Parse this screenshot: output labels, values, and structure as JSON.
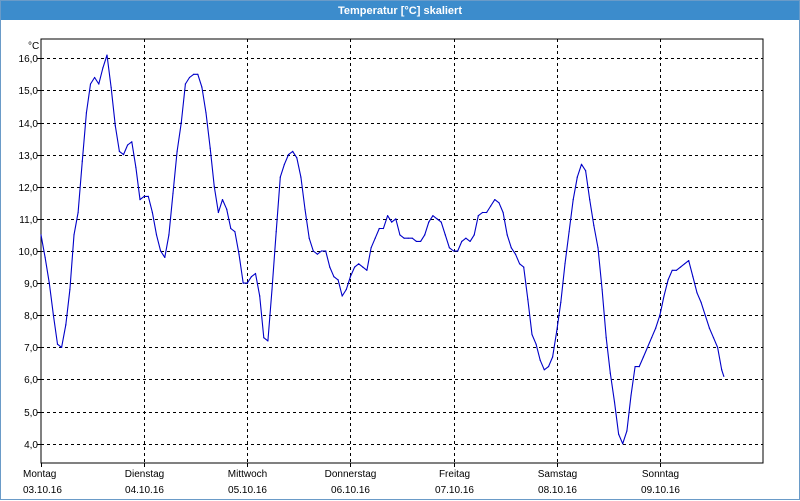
{
  "window": {
    "title": "Temperatur [°C] skaliert"
  },
  "colors": {
    "line": "#0000c8",
    "grid": "#000000",
    "titlebar": "#3c8ccc"
  },
  "chart_data": {
    "type": "line",
    "title": "Temperatur [°C] skaliert",
    "ylabel": "°C",
    "xlabel": "",
    "ylim": [
      3.4,
      16.6
    ],
    "xlim": [
      0,
      7
    ],
    "grid": true,
    "y_ticks": [
      "16,0",
      "15,0",
      "14,0",
      "13,0",
      "12,0",
      "11,0",
      "10,0",
      "9,0",
      "8,0",
      "7,0",
      "6,0",
      "5,0",
      "4,0"
    ],
    "y_tick_values": [
      16,
      15,
      14,
      13,
      12,
      11,
      10,
      9,
      8,
      7,
      6,
      5,
      4
    ],
    "x_ticks": [
      {
        "day": "Montag",
        "date": "03.10.16",
        "x": 0
      },
      {
        "day": "Dienstag",
        "date": "04.10.16",
        "x": 1
      },
      {
        "day": "Mittwoch",
        "date": "05.10.16",
        "x": 2
      },
      {
        "day": "Donnerstag",
        "date": "06.10.16",
        "x": 3
      },
      {
        "day": "Freitag",
        "date": "07.10.16",
        "x": 4
      },
      {
        "day": "Samstag",
        "date": "08.10.16",
        "x": 5
      },
      {
        "day": "Sonntag",
        "date": "09.10.16",
        "x": 6
      }
    ],
    "series": [
      {
        "points": [
          [
            0.0,
            10.5
          ],
          [
            0.04,
            9.8
          ],
          [
            0.08,
            9.0
          ],
          [
            0.12,
            8.0
          ],
          [
            0.16,
            7.1
          ],
          [
            0.2,
            7.0
          ],
          [
            0.24,
            7.7
          ],
          [
            0.28,
            8.8
          ],
          [
            0.32,
            10.5
          ],
          [
            0.36,
            11.2
          ],
          [
            0.4,
            12.8
          ],
          [
            0.44,
            14.3
          ],
          [
            0.48,
            15.2
          ],
          [
            0.52,
            15.4
          ],
          [
            0.56,
            15.2
          ],
          [
            0.6,
            15.7
          ],
          [
            0.64,
            16.1
          ],
          [
            0.68,
            15.1
          ],
          [
            0.72,
            13.9
          ],
          [
            0.76,
            13.1
          ],
          [
            0.8,
            13.0
          ],
          [
            0.84,
            13.3
          ],
          [
            0.88,
            13.4
          ],
          [
            0.92,
            12.6
          ],
          [
            0.96,
            11.6
          ],
          [
            1.0,
            11.7
          ],
          [
            1.04,
            11.7
          ],
          [
            1.08,
            11.2
          ],
          [
            1.12,
            10.5
          ],
          [
            1.16,
            10.0
          ],
          [
            1.2,
            9.8
          ],
          [
            1.24,
            10.5
          ],
          [
            1.28,
            11.8
          ],
          [
            1.32,
            13.1
          ],
          [
            1.36,
            14.0
          ],
          [
            1.4,
            15.2
          ],
          [
            1.44,
            15.4
          ],
          [
            1.48,
            15.5
          ],
          [
            1.52,
            15.5
          ],
          [
            1.56,
            15.1
          ],
          [
            1.6,
            14.3
          ],
          [
            1.64,
            13.2
          ],
          [
            1.68,
            12.0
          ],
          [
            1.72,
            11.2
          ],
          [
            1.76,
            11.6
          ],
          [
            1.8,
            11.3
          ],
          [
            1.84,
            10.7
          ],
          [
            1.88,
            10.6
          ],
          [
            1.92,
            9.9
          ],
          [
            1.96,
            9.0
          ],
          [
            2.0,
            9.0
          ],
          [
            2.04,
            9.2
          ],
          [
            2.08,
            9.3
          ],
          [
            2.12,
            8.6
          ],
          [
            2.16,
            7.3
          ],
          [
            2.2,
            7.2
          ],
          [
            2.24,
            8.8
          ],
          [
            2.28,
            10.6
          ],
          [
            2.32,
            12.3
          ],
          [
            2.36,
            12.7
          ],
          [
            2.4,
            13.0
          ],
          [
            2.44,
            13.1
          ],
          [
            2.48,
            12.9
          ],
          [
            2.52,
            12.3
          ],
          [
            2.56,
            11.3
          ],
          [
            2.6,
            10.4
          ],
          [
            2.64,
            10.0
          ],
          [
            2.68,
            9.9
          ],
          [
            2.72,
            10.0
          ],
          [
            2.76,
            10.0
          ],
          [
            2.8,
            9.5
          ],
          [
            2.84,
            9.2
          ],
          [
            2.88,
            9.1
          ],
          [
            2.92,
            8.6
          ],
          [
            2.96,
            8.8
          ],
          [
            3.0,
            9.2
          ],
          [
            3.04,
            9.5
          ],
          [
            3.08,
            9.6
          ],
          [
            3.12,
            9.5
          ],
          [
            3.16,
            9.4
          ],
          [
            3.2,
            10.1
          ],
          [
            3.24,
            10.4
          ],
          [
            3.28,
            10.7
          ],
          [
            3.32,
            10.7
          ],
          [
            3.36,
            11.1
          ],
          [
            3.4,
            10.9
          ],
          [
            3.44,
            11.0
          ],
          [
            3.48,
            10.5
          ],
          [
            3.52,
            10.4
          ],
          [
            3.56,
            10.4
          ],
          [
            3.6,
            10.4
          ],
          [
            3.64,
            10.3
          ],
          [
            3.68,
            10.3
          ],
          [
            3.72,
            10.5
          ],
          [
            3.76,
            10.9
          ],
          [
            3.8,
            11.1
          ],
          [
            3.84,
            11.0
          ],
          [
            3.88,
            10.9
          ],
          [
            3.92,
            10.5
          ],
          [
            3.96,
            10.1
          ],
          [
            4.0,
            10.0
          ],
          [
            4.04,
            10.0
          ],
          [
            4.08,
            10.3
          ],
          [
            4.12,
            10.4
          ],
          [
            4.16,
            10.3
          ],
          [
            4.2,
            10.5
          ],
          [
            4.24,
            11.1
          ],
          [
            4.28,
            11.2
          ],
          [
            4.32,
            11.2
          ],
          [
            4.36,
            11.4
          ],
          [
            4.4,
            11.6
          ],
          [
            4.44,
            11.5
          ],
          [
            4.48,
            11.2
          ],
          [
            4.52,
            10.5
          ],
          [
            4.56,
            10.1
          ],
          [
            4.6,
            9.9
          ],
          [
            4.64,
            9.6
          ],
          [
            4.68,
            9.5
          ],
          [
            4.72,
            8.5
          ],
          [
            4.76,
            7.4
          ],
          [
            4.8,
            7.1
          ],
          [
            4.84,
            6.6
          ],
          [
            4.88,
            6.3
          ],
          [
            4.92,
            6.4
          ],
          [
            4.96,
            6.7
          ],
          [
            5.0,
            7.5
          ],
          [
            5.04,
            8.4
          ],
          [
            5.08,
            9.6
          ],
          [
            5.12,
            10.6
          ],
          [
            5.16,
            11.6
          ],
          [
            5.2,
            12.3
          ],
          [
            5.24,
            12.7
          ],
          [
            5.28,
            12.5
          ],
          [
            5.32,
            11.6
          ],
          [
            5.36,
            10.8
          ],
          [
            5.4,
            10.1
          ],
          [
            5.44,
            8.8
          ],
          [
            5.48,
            7.3
          ],
          [
            5.52,
            6.2
          ],
          [
            5.56,
            5.3
          ],
          [
            5.6,
            4.3
          ],
          [
            5.64,
            4.0
          ],
          [
            5.68,
            4.4
          ],
          [
            5.72,
            5.5
          ],
          [
            5.76,
            6.4
          ],
          [
            5.8,
            6.4
          ],
          [
            5.84,
            6.7
          ],
          [
            5.88,
            7.0
          ],
          [
            5.92,
            7.3
          ],
          [
            5.96,
            7.6
          ],
          [
            6.0,
            8.0
          ],
          [
            6.04,
            8.6
          ],
          [
            6.08,
            9.1
          ],
          [
            6.12,
            9.4
          ],
          [
            6.16,
            9.4
          ],
          [
            6.2,
            9.5
          ],
          [
            6.24,
            9.6
          ],
          [
            6.28,
            9.7
          ],
          [
            6.32,
            9.2
          ],
          [
            6.36,
            8.7
          ],
          [
            6.4,
            8.4
          ],
          [
            6.44,
            8.0
          ],
          [
            6.48,
            7.6
          ],
          [
            6.52,
            7.3
          ],
          [
            6.56,
            7.0
          ],
          [
            6.6,
            6.3
          ],
          [
            6.62,
            6.1
          ]
        ]
      }
    ]
  }
}
